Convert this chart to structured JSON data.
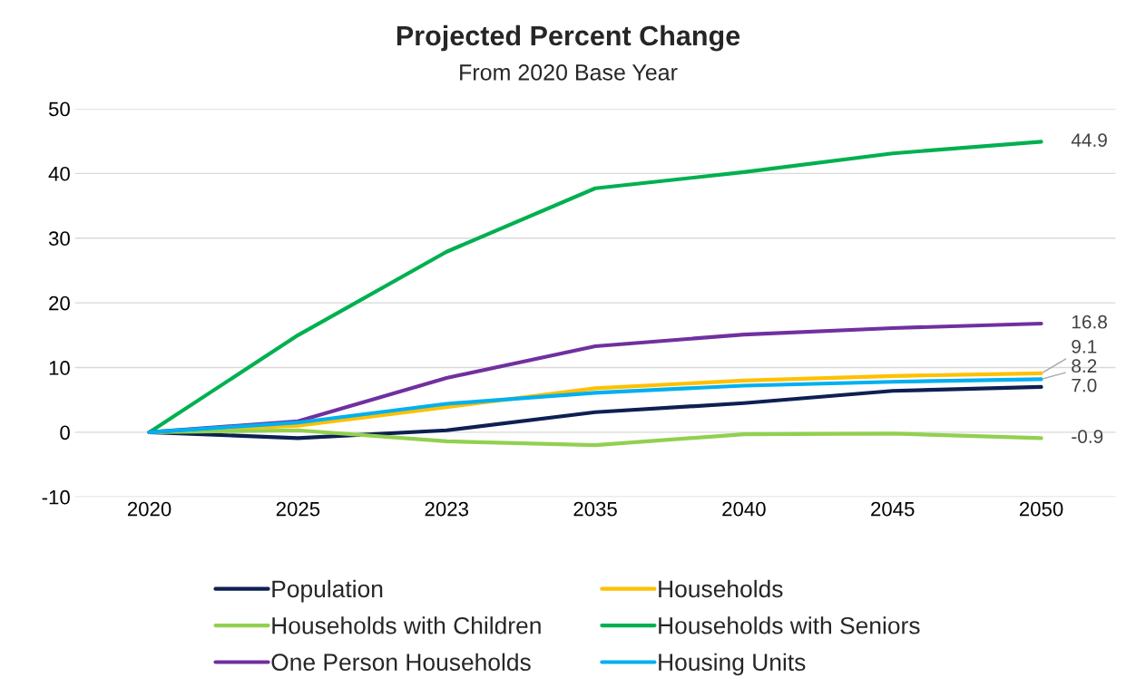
{
  "chart_data": {
    "type": "line",
    "title": "Projected Percent Change",
    "subtitle": "From 2020 Base Year",
    "categories": [
      "2020",
      "2025",
      "2023",
      "2035",
      "2040",
      "2045",
      "2050"
    ],
    "series": [
      {
        "name": "Population",
        "color": "#0d2052",
        "values": [
          0,
          -0.9,
          0.3,
          3.1,
          4.5,
          6.4,
          7.0
        ],
        "value_labels": [
          null,
          null,
          null,
          null,
          null,
          null,
          "7.0"
        ]
      },
      {
        "name": "Households",
        "color": "#ffc000",
        "values": [
          0,
          1.0,
          3.9,
          6.8,
          8.0,
          8.7,
          9.1
        ],
        "value_labels": [
          null,
          null,
          null,
          null,
          null,
          null,
          "9.1"
        ]
      },
      {
        "name": "Households with Children",
        "color": "#92d050",
        "values": [
          0,
          0.3,
          -1.4,
          -2.0,
          -0.3,
          -0.2,
          -0.9
        ],
        "value_labels": [
          null,
          null,
          null,
          null,
          null,
          null,
          "-0.9"
        ]
      },
      {
        "name": "Households with Seniors",
        "color": "#00b050",
        "values": [
          0,
          15.0,
          27.9,
          37.7,
          40.2,
          43.1,
          44.9
        ],
        "value_labels": [
          null,
          null,
          null,
          null,
          null,
          null,
          "44.9"
        ]
      },
      {
        "name": "One Person Households",
        "color": "#7030a0",
        "values": [
          0,
          1.7,
          8.4,
          13.3,
          15.1,
          16.1,
          16.8
        ],
        "value_labels": [
          null,
          null,
          null,
          null,
          null,
          null,
          "16.8"
        ]
      },
      {
        "name": "Housing Units",
        "color": "#00b0f0",
        "values": [
          0,
          1.5,
          4.4,
          6.1,
          7.2,
          7.8,
          8.2
        ],
        "value_labels": [
          null,
          null,
          null,
          null,
          null,
          null,
          "8.2"
        ]
      }
    ],
    "ylim": [
      -10,
      50
    ],
    "yticks": [
      -10,
      0,
      10,
      20,
      30,
      40,
      50
    ],
    "grid": "y",
    "legend": "bottom",
    "marker": "none",
    "line_style": "solid"
  }
}
